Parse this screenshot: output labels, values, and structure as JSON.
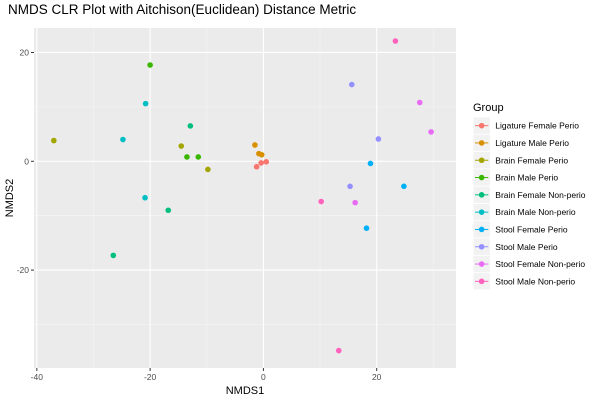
{
  "chart_data": {
    "type": "scatter",
    "title": "NMDS CLR Plot with Aitchison(Euclidean) Distance Metric",
    "xlabel": "NMDS1",
    "ylabel": "NMDS2",
    "xlim": [
      -40.5,
      34
    ],
    "ylim": [
      -38,
      24.5
    ],
    "x_ticks": [
      -40,
      -20,
      0,
      20
    ],
    "y_ticks": [
      -20,
      0,
      20
    ],
    "grid": true,
    "legend_title": "Group",
    "legend_position": "right",
    "series": [
      {
        "name": "Ligature Female Perio",
        "color": "#F8766D",
        "points": [
          [
            -1.2,
            -1.0
          ],
          [
            -0.4,
            -0.3
          ],
          [
            0.5,
            -0.1
          ]
        ]
      },
      {
        "name": "Ligature Male Perio",
        "color": "#D89000",
        "points": [
          [
            -1.5,
            3.0
          ],
          [
            -0.8,
            1.4
          ],
          [
            -0.3,
            1.2
          ]
        ]
      },
      {
        "name": "Brain Female Perio",
        "color": "#A3A500",
        "points": [
          [
            -37.0,
            3.8
          ],
          [
            -14.5,
            2.8
          ],
          [
            -9.8,
            -1.5
          ]
        ]
      },
      {
        "name": "Brain Male Perio",
        "color": "#39B600",
        "points": [
          [
            -20.0,
            17.7
          ],
          [
            -13.5,
            0.8
          ],
          [
            -11.5,
            0.8
          ]
        ]
      },
      {
        "name": "Brain Female Non-perio",
        "color": "#00BF7D",
        "points": [
          [
            -26.5,
            -17.3
          ],
          [
            -16.8,
            -9.0
          ],
          [
            -12.9,
            6.5
          ]
        ]
      },
      {
        "name": "Brain Male Non-perio",
        "color": "#00BFC4",
        "points": [
          [
            -24.8,
            4.0
          ],
          [
            -20.8,
            10.6
          ],
          [
            -20.9,
            -6.7
          ]
        ]
      },
      {
        "name": "Stool Female Perio",
        "color": "#00B0F6",
        "points": [
          [
            18.2,
            -12.3
          ],
          [
            18.9,
            -0.4
          ],
          [
            24.8,
            -4.6
          ]
        ]
      },
      {
        "name": "Stool Male Perio",
        "color": "#9590FF",
        "points": [
          [
            15.6,
            14.1
          ],
          [
            15.3,
            -4.6
          ],
          [
            20.3,
            4.1
          ]
        ]
      },
      {
        "name": "Stool Female Non-perio",
        "color": "#E76BF3",
        "points": [
          [
            16.2,
            -7.6
          ],
          [
            27.6,
            10.8
          ],
          [
            29.6,
            5.4
          ]
        ]
      },
      {
        "name": "Stool Male Non-perio",
        "color": "#FF62BC",
        "points": [
          [
            10.2,
            -7.4
          ],
          [
            13.3,
            -34.8
          ],
          [
            23.3,
            22.1
          ]
        ]
      }
    ]
  }
}
